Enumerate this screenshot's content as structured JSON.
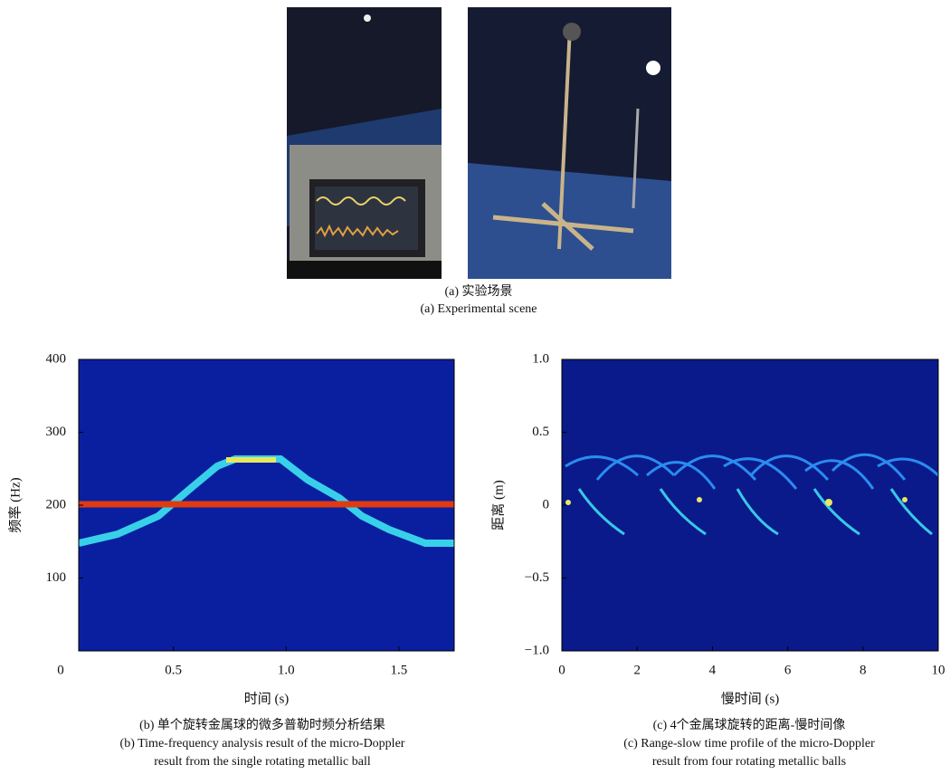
{
  "captions": {
    "a": [
      "(a) 实验场景",
      "(a) Experimental scene"
    ],
    "b": [
      "(b) 单个旋转金属球的微多普勒时频分析结果",
      "(b) Time-frequency analysis result of the micro-Doppler",
      "result from the single rotating metallic ball"
    ],
    "c": [
      "(c) 4个金属球旋转的距离-慢时间像",
      "(c) Range-slow time profile of the micro-Doppler",
      "result from four rotating metallic balls"
    ]
  },
  "chart_data": [
    {
      "type": "heatmap",
      "x_label": "时间 (s)",
      "y_label": "频率 (Hz)",
      "xlim": [
        0.08,
        1.745
      ],
      "ylim": [
        0,
        400
      ],
      "xticks": [
        0,
        0.5,
        {
          "value": 1,
          "label": "1.0"
        },
        1.5
      ],
      "yticks": [
        100,
        200,
        300,
        400
      ]
    },
    {
      "type": "heatmap",
      "x_label": "慢时间 (s)",
      "y_label": "距离 (m)",
      "xlim": [
        0,
        10
      ],
      "ylim": [
        -1,
        1
      ],
      "xticks": [
        0,
        2,
        4,
        6,
        8,
        10
      ],
      "yticks": [
        {
          "value": -1,
          "label": "−1.0"
        },
        {
          "value": -0.5,
          "label": "−0.5"
        },
        0,
        {
          "value": 0.5,
          "label": "0.5"
        },
        {
          "value": 1,
          "label": "1.0"
        }
      ]
    }
  ]
}
